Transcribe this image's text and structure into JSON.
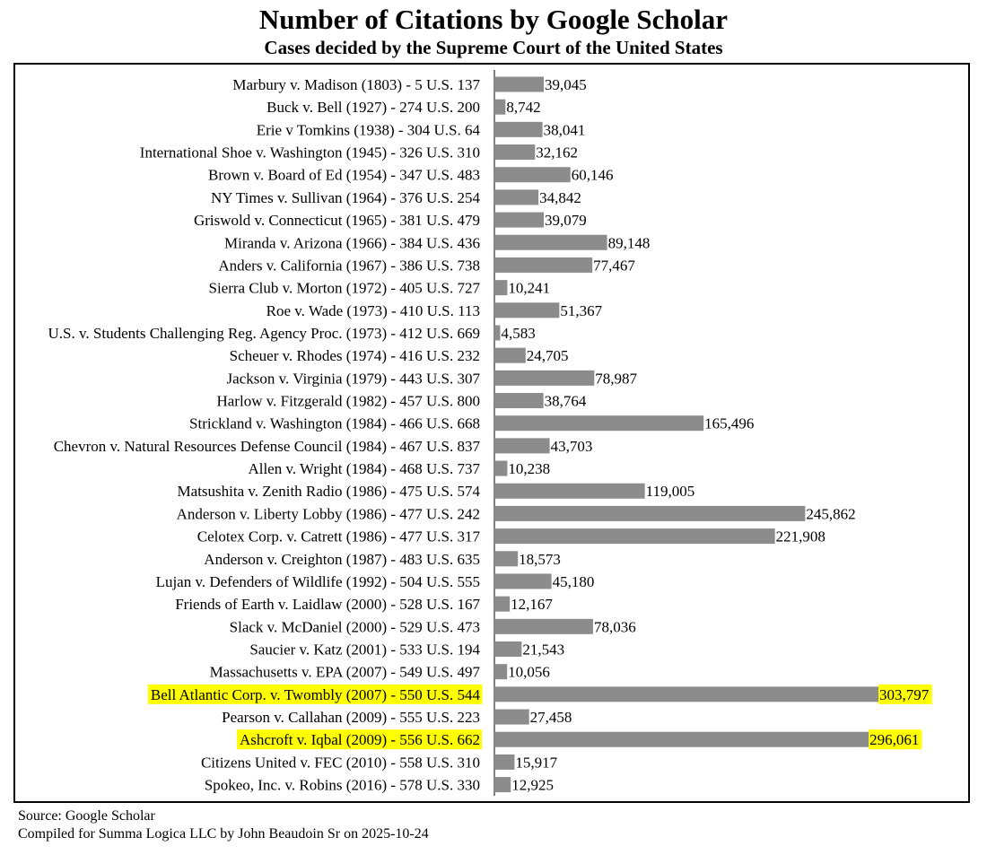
{
  "title": "Number of Citations by Google Scholar",
  "subtitle": "Cases decided by the Supreme Court of the United States",
  "footer": {
    "source": "Source: Google Scholar",
    "credit": "Compiled for Summa Logica LLC by John Beaudoin Sr on 2025-10-24"
  },
  "colors": {
    "bar": "#8c8c8c",
    "highlight": "#ffff00",
    "axis": "#000000"
  },
  "chart_data": {
    "type": "bar",
    "orientation": "horizontal",
    "categories": [
      "Marbury v. Madison (1803) - 5 U.S. 137",
      "Buck v. Bell (1927) - 274 U.S. 200",
      "Erie v Tomkins (1938) - 304 U.S. 64",
      "International Shoe v. Washington (1945) - 326 U.S. 310",
      "Brown v. Board of Ed (1954) - 347 U.S. 483",
      "NY Times v. Sullivan (1964) - 376 U.S. 254",
      "Griswold v. Connecticut (1965) - 381 U.S. 479",
      "Miranda v. Arizona (1966) - 384 U.S. 436",
      "Anders v. California (1967) - 386 U.S. 738",
      "Sierra Club v. Morton (1972) - 405 U.S. 727",
      "Roe v. Wade (1973) - 410 U.S. 113",
      "U.S. v. Students Challenging Reg. Agency Proc. (1973) - 412 U.S. 669",
      "Scheuer v. Rhodes (1974) - 416 U.S. 232",
      "Jackson v. Virginia (1979) - 443 U.S. 307",
      "Harlow v. Fitzgerald (1982) - 457 U.S. 800",
      "Strickland v. Washington (1984) - 466 U.S. 668",
      "Chevron v. Natural Resources Defense Council (1984) - 467 U.S. 837",
      "Allen v. Wright (1984) - 468 U.S. 737",
      "Matsushita v. Zenith Radio (1986) - 475 U.S. 574",
      "Anderson v. Liberty Lobby (1986) - 477 U.S. 242",
      "Celotex Corp. v. Catrett (1986) - 477 U.S. 317",
      "Anderson v. Creighton (1987) - 483 U.S. 635",
      "Lujan v. Defenders of Wildlife (1992) - 504 U.S. 555",
      "Friends of Earth v. Laidlaw (2000) - 528 U.S. 167",
      "Slack v. McDaniel (2000) - 529 U.S. 473",
      "Saucier v. Katz (2001) - 533 U.S. 194",
      "Massachusetts v. EPA (2007) - 549 U.S. 497",
      "Bell Atlantic Corp. v. Twombly (2007) - 550 U.S. 544",
      "Pearson v. Callahan (2009) - 555 U.S. 223",
      "Ashcroft v. Iqbal (2009) - 556 U.S. 662",
      "Citizens United v. FEC (2010) - 558 U.S. 310",
      "Spokeo, Inc. v. Robins (2016) - 578 U.S. 330"
    ],
    "values": [
      39045,
      8742,
      38041,
      32162,
      60146,
      34842,
      39079,
      89148,
      77467,
      10241,
      51367,
      4583,
      24705,
      78987,
      38764,
      165496,
      43703,
      10238,
      119005,
      245862,
      221908,
      18573,
      45180,
      12167,
      78036,
      21543,
      10056,
      303797,
      27458,
      296061,
      15917,
      12925
    ],
    "value_labels": [
      "39,045",
      "8,742",
      "38,041",
      "32,162",
      "60,146",
      "34,842",
      "39,079",
      "89,148",
      "77,467",
      "10,241",
      "51,367",
      "4,583",
      "24,705",
      "78,987",
      "38,764",
      "165,496",
      "43,703",
      "10,238",
      "119,005",
      "245,862",
      "221,908",
      "18,573",
      "45,180",
      "12,167",
      "78,036",
      "21,543",
      "10,056",
      "303,797",
      "27,458",
      "296,061",
      "15,917",
      "12,925"
    ],
    "highlighted": [
      "Bell Atlantic Corp. v. Twombly (2007) - 550 U.S. 544",
      "Ashcroft v. Iqbal (2009) - 556 U.S. 662"
    ],
    "xlim": [
      0,
      303797
    ],
    "grid": false,
    "legend": "none"
  }
}
